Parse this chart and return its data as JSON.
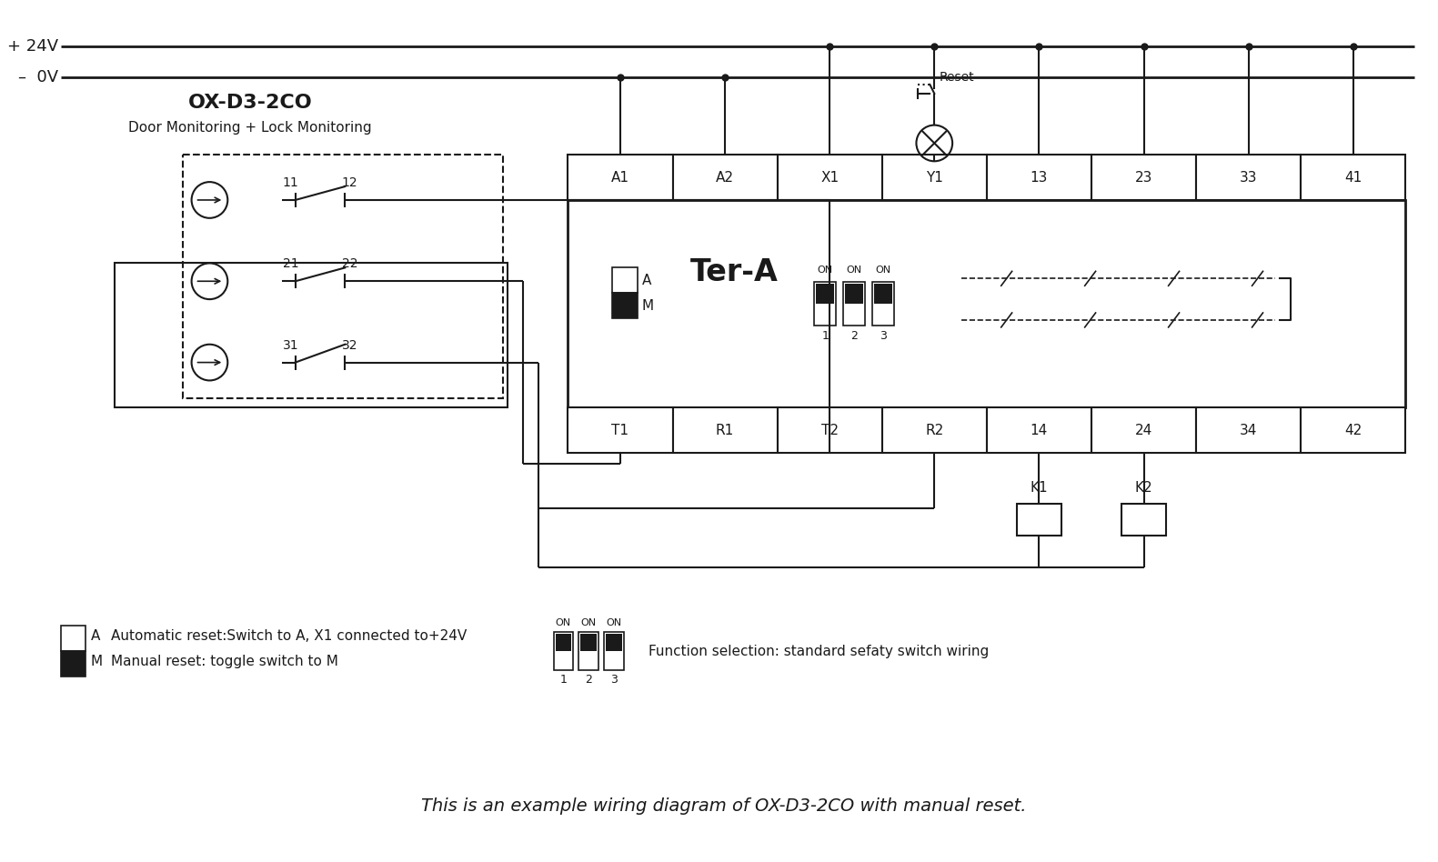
{
  "bg_color": "#ffffff",
  "line_color": "#1a1a1a",
  "plus_label": "+ 24V",
  "minus_label": "–  0V",
  "ox_title": "OX-D3-2CO",
  "ox_subtitle": "Door Monitoring + Lock Monitoring",
  "relay_title": "Ter-A",
  "top_pins": [
    "A1",
    "A2",
    "X1",
    "Y1",
    "13",
    "23",
    "33",
    "41"
  ],
  "bot_pins": [
    "T1",
    "R1",
    "T2",
    "R2",
    "14",
    "24",
    "34",
    "42"
  ],
  "switch_contacts": [
    [
      "11",
      "12"
    ],
    [
      "21",
      "22"
    ],
    [
      "31",
      "32"
    ]
  ],
  "legend_text1": "Automatic reset:Switch to A, X1 connected to+24V",
  "legend_text2": "Manual reset: toggle switch to M",
  "func_text": "Function selection: standard sefaty switch wiring",
  "footer": "This is an example wiring diagram of OX-D3-2CO with manual reset.",
  "reset_label": "Reset"
}
